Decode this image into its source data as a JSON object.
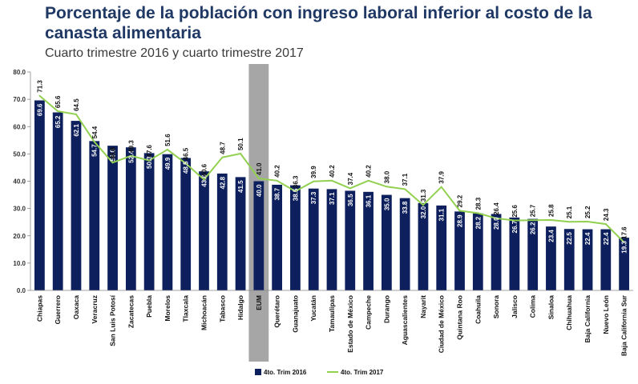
{
  "chart_data": {
    "type": "bar",
    "title": "Porcentaje de la población con ingreso laboral inferior al costo de la canasta alimentaria",
    "subtitle": "Cuarto trimestre 2016 y cuarto trimestre 2017",
    "categories": [
      "Chiapas",
      "Guerrero",
      "Oaxaca",
      "Veracruz",
      "San Luis Potosí",
      "Zacatecas",
      "Puebla",
      "Morelos",
      "Tlaxcala",
      "Michoacán",
      "Tabasco",
      "Hidalgo",
      "EUM",
      "Querétaro",
      "Guanajuato",
      "Yucatán",
      "Tamaulipas",
      "Estado de México",
      "Campeche",
      "Durango",
      "Aguascalientes",
      "Nayarit",
      "Ciudad de México",
      "Quintana Roo",
      "Coahuila",
      "Sonora",
      "Jalisco",
      "Colima",
      "Sinaloa",
      "Chihuahua",
      "Baja California",
      "Nuevo León",
      "Baja California Sur"
    ],
    "series": [
      {
        "name": "4to. Trim 2016",
        "type": "bar",
        "color": "#0d1f5c",
        "values": [
          69.6,
          65.2,
          62.1,
          54.7,
          53.0,
          52.4,
          50.3,
          49.9,
          48.5,
          43.6,
          42.8,
          41.5,
          40.0,
          38.7,
          38.5,
          37.3,
          37.1,
          36.5,
          36.1,
          35.0,
          33.8,
          32.0,
          31.1,
          28.9,
          28.2,
          28.0,
          26.7,
          26.2,
          23.4,
          22.5,
          22.4,
          22.4,
          19.3
        ]
      },
      {
        "name": "4to. Trim 2017",
        "type": "line",
        "color": "#92d050",
        "values": [
          71.3,
          65.6,
          64.5,
          54.4,
          46.8,
          49.3,
          47.6,
          51.6,
          46.5,
          40.6,
          48.7,
          50.1,
          41.0,
          40.2,
          36.3,
          39.9,
          40.2,
          37.4,
          40.2,
          38.0,
          37.1,
          31.3,
          37.9,
          29.2,
          28.3,
          26.4,
          25.6,
          25.7,
          25.8,
          25.1,
          25.2,
          24.3,
          17.6
        ]
      }
    ],
    "highlight_category": "EUM",
    "highlight_color": "#a6a6a6",
    "ylim": [
      0,
      80
    ],
    "yticks": [
      "0.0",
      "10.0",
      "20.0",
      "30.0",
      "40.0",
      "50.0",
      "60.0",
      "70.0",
      "80.0"
    ],
    "xlabel": "",
    "ylabel": "",
    "grid": false,
    "legend": "bottom"
  }
}
